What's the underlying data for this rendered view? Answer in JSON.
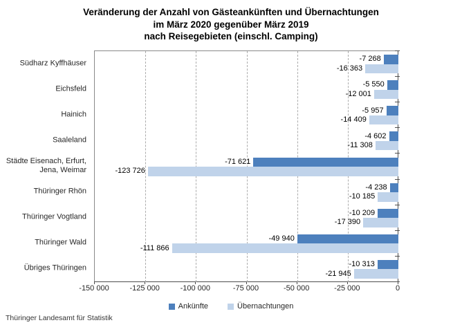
{
  "title": {
    "line1": "Veränderung der Anzahl von Gästeankünften und Übernachtungen",
    "line2": "im März 2020 gegenüber März 2019",
    "line3": "nach Reisegebieten (einschl. Camping)"
  },
  "footer": {
    "source": "Thüringer Landesamt für Statistik"
  },
  "chart_data": {
    "type": "bar",
    "orientation": "horizontal",
    "categories": [
      "Südharz Kyffhäuser",
      "Eichsfeld",
      "Hainich",
      "Saaleland",
      "Städte Eisenach, Erfurt, Jena, Weimar",
      "Thüringer Rhön",
      "Thüringer Vogtland",
      "Thüringer Wald",
      "Übriges Thüringen"
    ],
    "series": [
      {
        "name": "Ankünfte",
        "color": "#4d80bd",
        "values": [
          -7268,
          -5550,
          -5957,
          -4602,
          -71621,
          -4238,
          -10209,
          -49940,
          -10313
        ]
      },
      {
        "name": "Übernachtungen",
        "color": "#c0d3ea",
        "values": [
          -16363,
          -12001,
          -14409,
          -11308,
          -123726,
          -10185,
          -17390,
          -111866,
          -21945
        ]
      }
    ],
    "xlim": [
      -150000,
      0
    ],
    "x_ticks": [
      -150000,
      -125000,
      -100000,
      -75000,
      -50000,
      -25000,
      0
    ],
    "x_tick_labels": [
      "-150 000",
      "-125 000",
      "-100 000",
      "-75 000",
      "-50 000",
      "-25 000",
      "0"
    ],
    "grid": "vertical-dashed",
    "legend_position": "bottom",
    "value_labels": "outside-end",
    "thousands_separator": " "
  }
}
